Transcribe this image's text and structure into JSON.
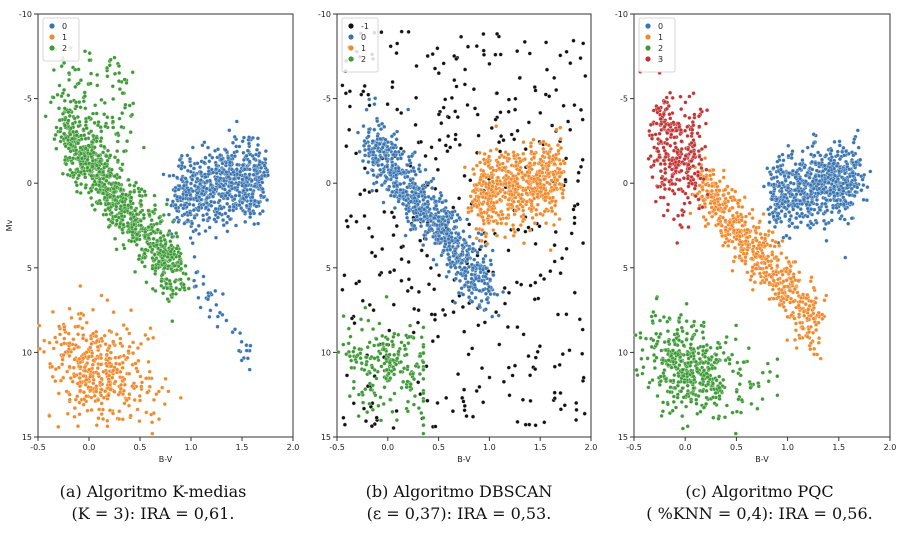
{
  "figure": {
    "panels": [
      {
        "caption_line1": "(a) Algoritmo K-medias",
        "caption_line2": "(K = 3): IRA = 0,61."
      },
      {
        "caption_line1": "(b) Algoritmo DBSCAN",
        "caption_line2": "(ε = 0,37): IRA = 0,53."
      },
      {
        "caption_line1": "(c) Algoritmo PQC",
        "caption_line2": "( %KNN = 0,4): IRA = 0,56."
      }
    ]
  },
  "chart_data": [
    {
      "type": "scatter",
      "xlabel": "B-V",
      "ylabel": "Mv",
      "xlim": [
        -0.5,
        2.0
      ],
      "ylim": [
        15,
        -10
      ],
      "y_inverted": true,
      "xticks": [
        "-0.5",
        "0.0",
        "0.5",
        "1.0",
        "1.5",
        "2.0"
      ],
      "yticks": [
        "-10",
        "-5",
        "0",
        "5",
        "10",
        "15"
      ],
      "grid": false,
      "legend_position": "top-left",
      "series": [
        {
          "name": "0",
          "color": "#3a75b0",
          "regions": [
            "giant branch (B-V 0.8–1.7, Mv -3 to 3)",
            "red dwarf tail (B-V 1.1–1.6, Mv 6–11)"
          ]
        },
        {
          "name": "1",
          "color": "#ef8a2c",
          "regions": [
            "white dwarfs (B-V -0.5–0.8, Mv 7–14.5)"
          ]
        },
        {
          "name": "2",
          "color": "#3e9a36",
          "regions": [
            "upper main sequence (B-V -0.3–0.9, Mv -8 to 6)"
          ]
        }
      ]
    },
    {
      "type": "scatter",
      "xlabel": "B-V",
      "ylabel": "",
      "xlim": [
        -0.5,
        2.0
      ],
      "ylim": [
        15,
        -10
      ],
      "y_inverted": true,
      "xticks": [
        "-0.5",
        "0.0",
        "0.5",
        "1.0",
        "1.5",
        "2.0"
      ],
      "yticks": [
        "-10",
        "-5",
        "0",
        "5",
        "10",
        "15"
      ],
      "grid": false,
      "legend_position": "top-left",
      "series": [
        {
          "name": "-1",
          "color": "#111111",
          "regions": [
            "noise scattered over the whole diagram"
          ]
        },
        {
          "name": "0",
          "color": "#3a75b0",
          "regions": [
            "main sequence (B-V -0.2–1.0, Mv -2 to 6)"
          ]
        },
        {
          "name": "1",
          "color": "#ef8a2c",
          "regions": [
            "giant branch (B-V 0.7–1.6, Mv -2.5 to 3)"
          ]
        },
        {
          "name": "2",
          "color": "#3e9a36",
          "regions": [
            "white dwarfs (B-V -0.3–0.3, Mv 9–13)"
          ]
        }
      ]
    },
    {
      "type": "scatter",
      "xlabel": "B-V",
      "ylabel": "",
      "xlim": [
        -0.5,
        2.0
      ],
      "ylim": [
        15,
        -10
      ],
      "y_inverted": true,
      "xticks": [
        "-0.5",
        "0.0",
        "0.5",
        "1.0",
        "1.5",
        "2.0"
      ],
      "yticks": [
        "-10",
        "-5",
        "0",
        "5",
        "10",
        "15"
      ],
      "grid": false,
      "legend_position": "top-left",
      "series": [
        {
          "name": "0",
          "color": "#3a75b0",
          "regions": [
            "giant branch (B-V 0.8–1.7, Mv -3 to 3)"
          ]
        },
        {
          "name": "1",
          "color": "#ef8a2c",
          "regions": [
            "lower main sequence (B-V 0.1–1.3, Mv 1 to 8)"
          ]
        },
        {
          "name": "2",
          "color": "#3e9a36",
          "regions": [
            "white dwarfs (B-V -0.5–0.9, Mv 7–14.5)"
          ]
        },
        {
          "name": "3",
          "color": "#c03434",
          "regions": [
            "upper main sequence (B-V -0.3–0.3, Mv -6 to 2)"
          ]
        }
      ]
    }
  ]
}
